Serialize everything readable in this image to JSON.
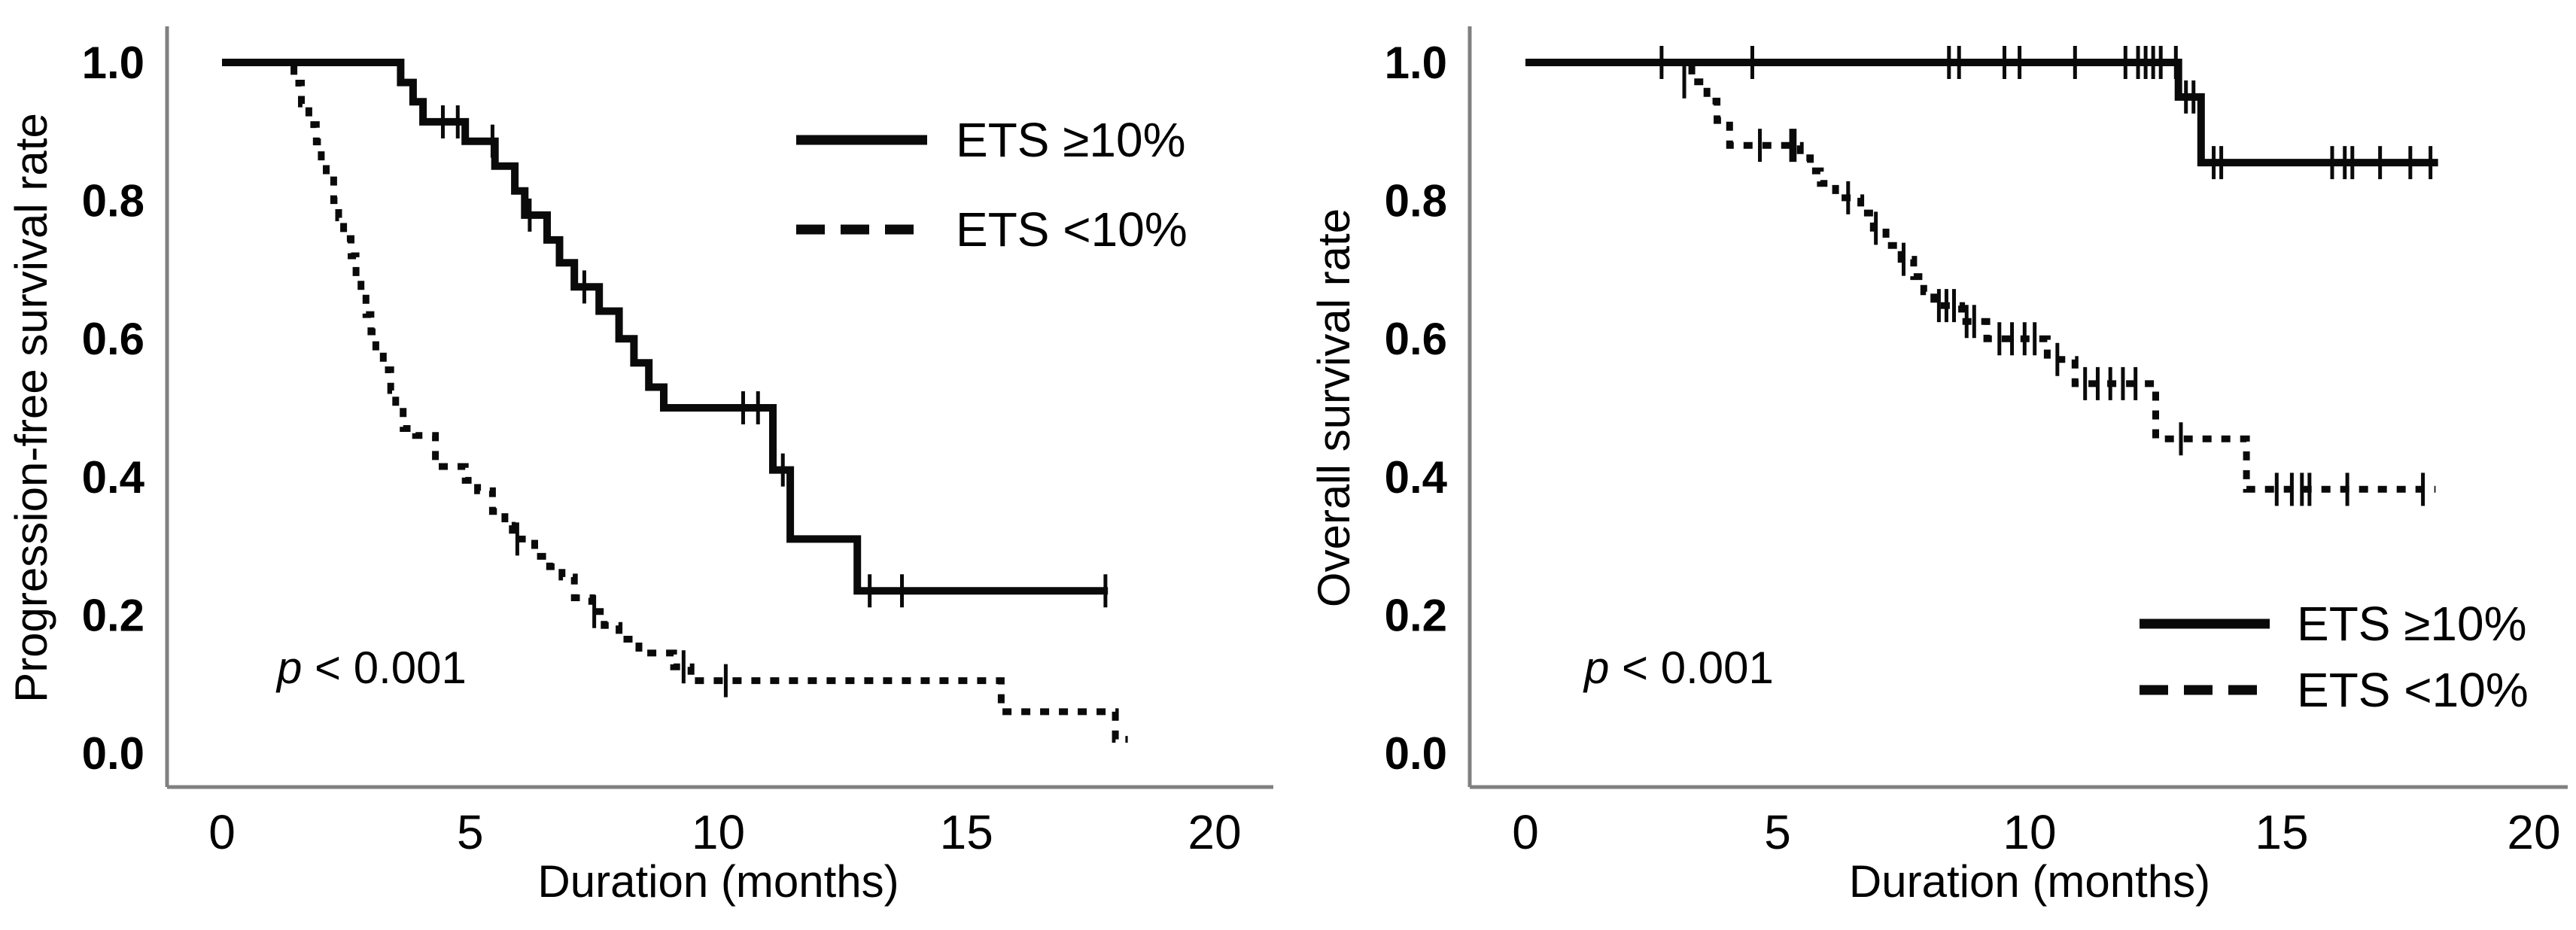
{
  "figure": {
    "background": "#ffffff",
    "curve_color": "#0a0a0a",
    "axis_color": "#808080",
    "text_color": "#000000"
  },
  "chart_data": [
    {
      "type": "line",
      "subtype": "kaplan-meier-step",
      "title": "",
      "xlabel": "Duration (months)",
      "ylabel": "Progression-free survival rate",
      "xlim": [
        0,
        20
      ],
      "ylim": [
        0.0,
        1.0
      ],
      "xticks": [
        0,
        5,
        10,
        15,
        20
      ],
      "yticks": [
        "1.0",
        "0.8",
        "0.6",
        "0.4",
        "0.2",
        "0.0"
      ],
      "grid": false,
      "legend_position": "top-right",
      "annotation": "p < 0.001",
      "series": [
        {
          "name": "ETS ≥10%",
          "line_style": "solid",
          "points": [
            [
              0,
              1.0
            ],
            [
              3.6,
              0.971
            ],
            [
              3.85,
              0.943
            ],
            [
              4.05,
              0.914
            ],
            [
              4.9,
              0.886
            ],
            [
              5.5,
              0.85
            ],
            [
              5.9,
              0.814
            ],
            [
              6.1,
              0.779
            ],
            [
              6.55,
              0.743
            ],
            [
              6.8,
              0.71
            ],
            [
              7.1,
              0.675
            ],
            [
              7.6,
              0.64
            ],
            [
              8.0,
              0.6
            ],
            [
              8.3,
              0.565
            ],
            [
              8.6,
              0.53
            ],
            [
              8.9,
              0.5
            ],
            [
              11.1,
              0.41
            ],
            [
              11.45,
              0.31
            ],
            [
              12.8,
              0.235
            ],
            [
              17.85,
              0.235
            ]
          ],
          "censor_marks": [
            [
              4.45,
              0.914
            ],
            [
              4.75,
              0.914
            ],
            [
              5.45,
              0.886
            ],
            [
              6.2,
              0.779
            ],
            [
              7.3,
              0.675
            ],
            [
              10.5,
              0.5
            ],
            [
              10.8,
              0.5
            ],
            [
              11.3,
              0.41
            ],
            [
              13.05,
              0.235
            ],
            [
              13.7,
              0.235
            ],
            [
              17.8,
              0.235
            ]
          ]
        },
        {
          "name": "ETS <10%",
          "line_style": "dashed",
          "points": [
            [
              0,
              1.0
            ],
            [
              1.45,
              0.97
            ],
            [
              1.6,
              0.94
            ],
            [
              1.75,
              0.91
            ],
            [
              1.9,
              0.885
            ],
            [
              2.0,
              0.855
            ],
            [
              2.1,
              0.83
            ],
            [
              2.25,
              0.8
            ],
            [
              2.35,
              0.775
            ],
            [
              2.45,
              0.745
            ],
            [
              2.6,
              0.72
            ],
            [
              2.7,
              0.69
            ],
            [
              2.8,
              0.665
            ],
            [
              2.9,
              0.635
            ],
            [
              3.0,
              0.61
            ],
            [
              3.1,
              0.58
            ],
            [
              3.25,
              0.555
            ],
            [
              3.4,
              0.525
            ],
            [
              3.5,
              0.5
            ],
            [
              3.65,
              0.47
            ],
            [
              3.9,
              0.46
            ],
            [
              4.3,
              0.415
            ],
            [
              4.9,
              0.395
            ],
            [
              5.15,
              0.38
            ],
            [
              5.45,
              0.35
            ],
            [
              5.7,
              0.33
            ],
            [
              5.85,
              0.31
            ],
            [
              6.3,
              0.285
            ],
            [
              6.6,
              0.27
            ],
            [
              6.85,
              0.255
            ],
            [
              7.1,
              0.225
            ],
            [
              7.45,
              0.205
            ],
            [
              7.7,
              0.185
            ],
            [
              8.0,
              0.165
            ],
            [
              8.4,
              0.145
            ],
            [
              9.1,
              0.125
            ],
            [
              9.45,
              0.105
            ],
            [
              15.7,
              0.06
            ],
            [
              18.0,
              0.02
            ],
            [
              18.25,
              0.02
            ]
          ],
          "censor_marks": [
            [
              5.95,
              0.31
            ],
            [
              7.5,
              0.205
            ],
            [
              9.3,
              0.125
            ],
            [
              10.15,
              0.105
            ]
          ]
        }
      ]
    },
    {
      "type": "line",
      "subtype": "kaplan-meier-step",
      "title": "",
      "xlabel": "Duration (months)",
      "ylabel": "Overall survival rate",
      "xlim": [
        0,
        20
      ],
      "ylim": [
        0.0,
        1.0
      ],
      "xticks": [
        0,
        5,
        10,
        15,
        20
      ],
      "yticks": [
        "1.0",
        "0.8",
        "0.6",
        "0.4",
        "0.2",
        "0.0"
      ],
      "grid": false,
      "legend_position": "bottom-right",
      "annotation": "p < 0.001",
      "series": [
        {
          "name": "ETS ≥10%",
          "line_style": "solid",
          "points": [
            [
              0,
              1.0
            ],
            [
              12.95,
              0.95
            ],
            [
              13.4,
              0.855
            ],
            [
              18.1,
              0.855
            ]
          ],
          "censor_marks": [
            [
              2.7,
              1.0
            ],
            [
              4.5,
              1.0
            ],
            [
              8.4,
              1.0
            ],
            [
              8.6,
              1.0
            ],
            [
              9.5,
              1.0
            ],
            [
              9.8,
              1.0
            ],
            [
              10.9,
              1.0
            ],
            [
              11.9,
              1.0
            ],
            [
              12.15,
              1.0
            ],
            [
              12.3,
              1.0
            ],
            [
              12.45,
              1.0
            ],
            [
              12.6,
              1.0
            ],
            [
              12.9,
              1.0
            ],
            [
              13.1,
              0.95
            ],
            [
              13.25,
              0.95
            ],
            [
              13.65,
              0.855
            ],
            [
              13.8,
              0.855
            ],
            [
              16.0,
              0.855
            ],
            [
              16.25,
              0.855
            ],
            [
              16.4,
              0.855
            ],
            [
              16.95,
              0.855
            ],
            [
              17.55,
              0.855
            ],
            [
              17.95,
              0.855
            ]
          ]
        },
        {
          "name": "ETS <10%",
          "line_style": "dashed",
          "points": [
            [
              0,
              1.0
            ],
            [
              3.3,
              0.972
            ],
            [
              3.6,
              0.944
            ],
            [
              3.8,
              0.916
            ],
            [
              4.05,
              0.88
            ],
            [
              5.45,
              0.862
            ],
            [
              5.65,
              0.843
            ],
            [
              5.85,
              0.825
            ],
            [
              6.15,
              0.804
            ],
            [
              6.65,
              0.782
            ],
            [
              6.9,
              0.76
            ],
            [
              7.15,
              0.735
            ],
            [
              7.45,
              0.715
            ],
            [
              7.7,
              0.69
            ],
            [
              7.9,
              0.668
            ],
            [
              8.1,
              0.648
            ],
            [
              8.65,
              0.625
            ],
            [
              9.15,
              0.6
            ],
            [
              10.35,
              0.57
            ],
            [
              10.9,
              0.535
            ],
            [
              12.5,
              0.455
            ],
            [
              14.3,
              0.382
            ],
            [
              18.05,
              0.382
            ]
          ],
          "censor_marks": [
            [
              3.15,
              0.972
            ],
            [
              4.65,
              0.88
            ],
            [
              5.27,
              0.88
            ],
            [
              5.34,
              0.88
            ],
            [
              6.4,
              0.804
            ],
            [
              6.95,
              0.76
            ],
            [
              7.5,
              0.715
            ],
            [
              8.2,
              0.648
            ],
            [
              8.35,
              0.648
            ],
            [
              8.5,
              0.648
            ],
            [
              8.75,
              0.625
            ],
            [
              8.9,
              0.625
            ],
            [
              9.4,
              0.6
            ],
            [
              9.65,
              0.6
            ],
            [
              9.9,
              0.6
            ],
            [
              10.1,
              0.6
            ],
            [
              10.55,
              0.57
            ],
            [
              11.1,
              0.535
            ],
            [
              11.35,
              0.535
            ],
            [
              11.6,
              0.535
            ],
            [
              11.85,
              0.535
            ],
            [
              12.1,
              0.535
            ],
            [
              13.0,
              0.455
            ],
            [
              14.9,
              0.382
            ],
            [
              15.2,
              0.382
            ],
            [
              15.4,
              0.382
            ],
            [
              15.55,
              0.382
            ],
            [
              16.3,
              0.382
            ],
            [
              17.8,
              0.382
            ]
          ]
        }
      ]
    }
  ]
}
